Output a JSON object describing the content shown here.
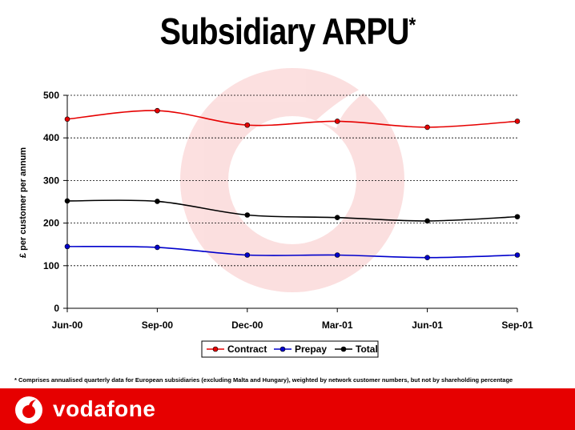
{
  "title": "Subsidiary ARPU",
  "title_mark": "*",
  "footnote": "* Comprises annualised quarterly data for European subsidiaries (excluding Malta and Hungary), weighted by network customer numbers, but not by shareholding percentage",
  "brand": {
    "name": "vodafone",
    "color": "#e60000"
  },
  "chart_data": {
    "type": "line",
    "title": "",
    "xlabel": "",
    "ylabel": "£ per customer per annum",
    "ylim": [
      0,
      500
    ],
    "yticks": [
      0,
      100,
      200,
      300,
      400,
      500
    ],
    "grid": true,
    "legend": "bottom",
    "categories": [
      "Jun-00",
      "Sep-00",
      "Dec-00",
      "Mar-01",
      "Jun-01",
      "Sep-01"
    ],
    "series": [
      {
        "name": "Contract",
        "color": "#e60000",
        "values": [
          444,
          464,
          430,
          439,
          425,
          439
        ]
      },
      {
        "name": "Prepay",
        "color": "#0000cc",
        "values": [
          145,
          143,
          125,
          125,
          119,
          125
        ]
      },
      {
        "name": "Total",
        "color": "#000000",
        "values": [
          252,
          251,
          219,
          213,
          205,
          215
        ]
      }
    ]
  }
}
